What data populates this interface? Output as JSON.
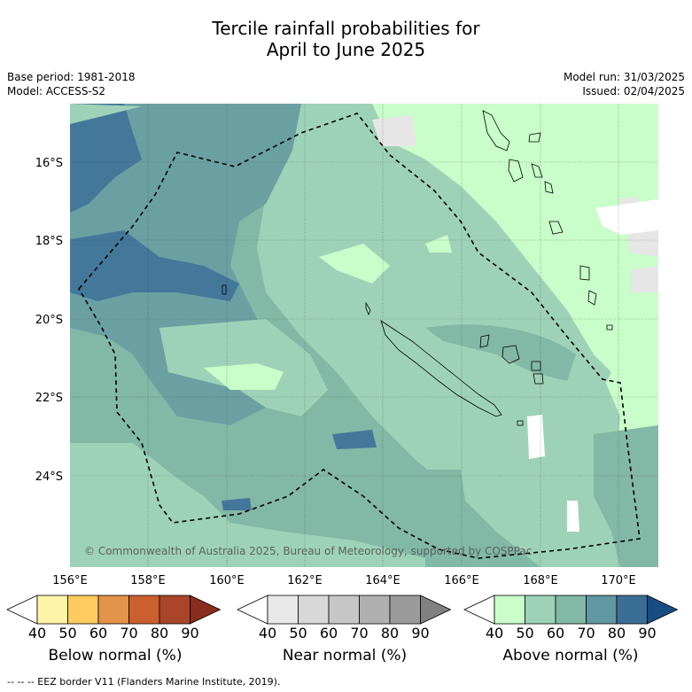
{
  "title_line1": "Tercile rainfall probabilities for",
  "title_line2": "April to June 2025",
  "base_period": "Base period: 1981-2018",
  "model": "Model: ACCESS-S2",
  "model_run": "Model run: 31/03/2025",
  "issued": "Issued: 02/04/2025",
  "copyright": "© Commonwealth of Australia 2025, Bureau of Meteorology, supported by COSPPac",
  "footer": "-- -- -- EEZ border V11 (Flanders Marine Institute, 2019).",
  "lat_labels": [
    "16°S",
    "18°S",
    "20°S",
    "22°S",
    "24°S"
  ],
  "lon_labels": [
    "156°E",
    "158°E",
    "160°E",
    "162°E",
    "164°E",
    "166°E",
    "168°E",
    "170°E"
  ],
  "colorbars": [
    {
      "label": "Below normal (%)",
      "ticks": [
        "40",
        "50",
        "60",
        "70",
        "80",
        "90"
      ],
      "colors": [
        "#ffffff",
        "#fff3a8",
        "#fdcb5f",
        "#e3934a",
        "#c9602e",
        "#a8452a",
        "#8a2c1e"
      ]
    },
    {
      "label": "Near normal (%)",
      "ticks": [
        "40",
        "50",
        "60",
        "70",
        "80",
        "90"
      ],
      "colors": [
        "#ffffff",
        "#e8e8e8",
        "#d8d8d8",
        "#c6c6c6",
        "#b0b0b0",
        "#9a9a9a",
        "#808080"
      ]
    },
    {
      "label": "Above normal (%)",
      "ticks": [
        "40",
        "50",
        "60",
        "70",
        "80",
        "90"
      ],
      "colors": [
        "#ffffff",
        "#c9fdc9",
        "#9ed2b8",
        "#82b8a6",
        "#5f97a2",
        "#3b6e94",
        "#1a4c84"
      ]
    }
  ],
  "map_colors": {
    "c60": "#82b8a6",
    "c50": "#9ed2b8",
    "c40": "#c9fdc9",
    "c70": "#6ba0a3",
    "c80": "#44789a",
    "nn": "#e6e6e6"
  }
}
